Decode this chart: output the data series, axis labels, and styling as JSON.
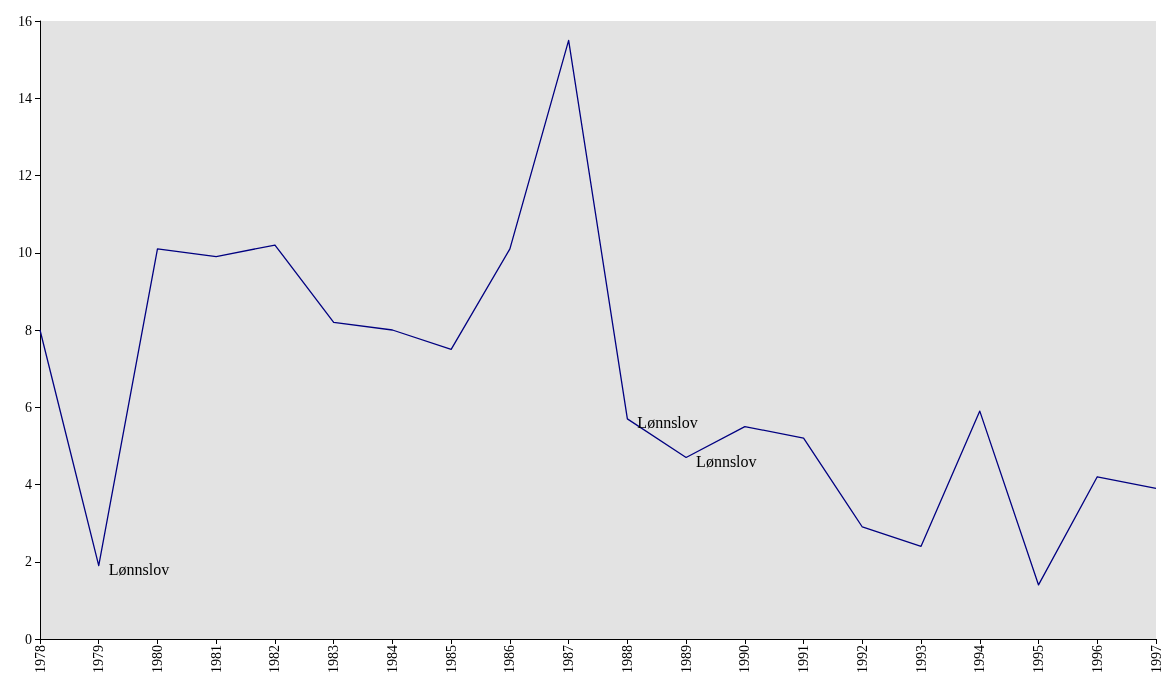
{
  "chart_data": {
    "type": "line",
    "categories": [
      "1978",
      "1979",
      "1980",
      "1981",
      "1982",
      "1983",
      "1984",
      "1985",
      "1986",
      "1987",
      "1988",
      "1989",
      "1990",
      "1991",
      "1992",
      "1993",
      "1994",
      "1995",
      "1996",
      "1997"
    ],
    "series": [
      {
        "color": "#000080",
        "values": [
          8.0,
          1.9,
          10.1,
          9.9,
          10.2,
          8.2,
          8.0,
          7.5,
          10.1,
          15.5,
          5.7,
          4.7,
          5.5,
          5.2,
          2.9,
          2.4,
          5.9,
          1.4,
          4.2,
          3.9
        ]
      }
    ],
    "ylim": [
      0,
      16
    ],
    "yticks": [
      0,
      2,
      4,
      6,
      8,
      10,
      12,
      14,
      16
    ],
    "grid": false,
    "marker": "none",
    "line_style": "solid",
    "annotations": [
      {
        "text": "Lønnslov",
        "x": "1979",
        "y": 1.9
      },
      {
        "text": "Lønnslov",
        "x": "1988",
        "y": 5.7
      },
      {
        "text": "Lønnslov",
        "x": "1989",
        "y": 4.7
      }
    ]
  }
}
